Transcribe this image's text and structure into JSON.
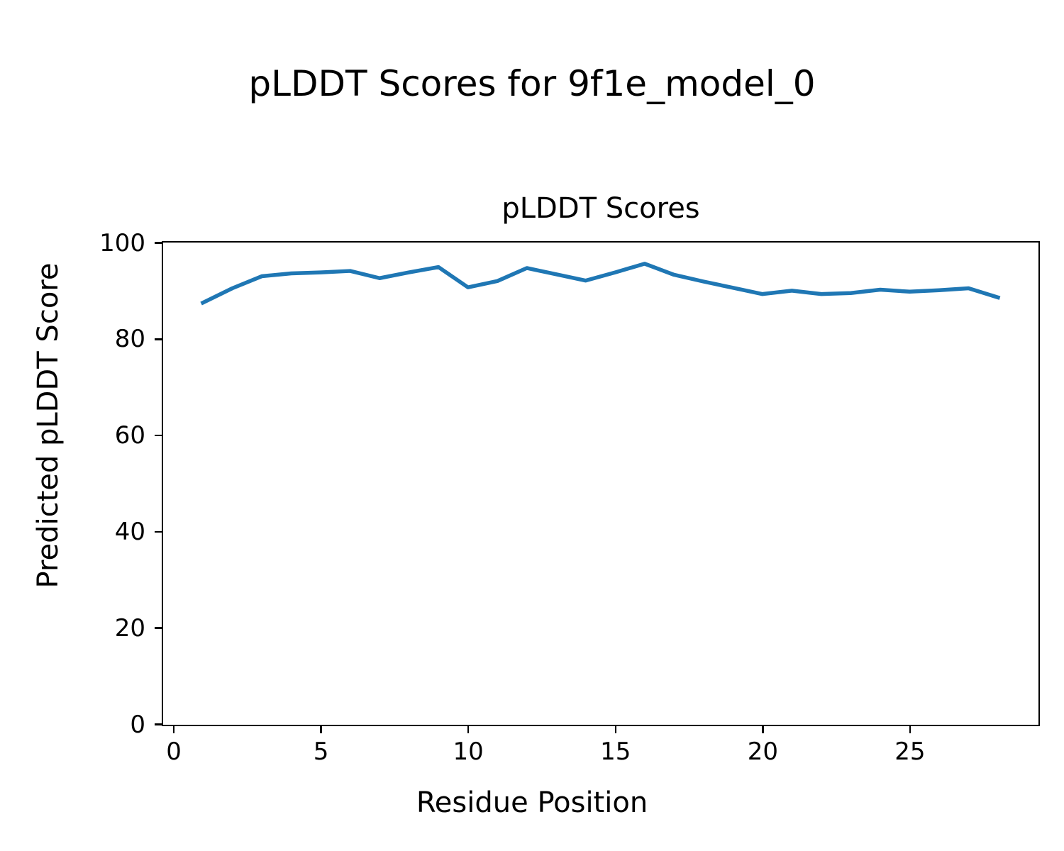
{
  "figure": {
    "suptitle": "pLDDT Scores for 9f1e_model_0",
    "background_color": "#ffffff",
    "text_color": "#000000"
  },
  "chart_data": {
    "type": "line",
    "title": "pLDDT Scores",
    "xlabel": "Residue Position",
    "ylabel": "Predicted pLDDT Score",
    "x": [
      1,
      2,
      3,
      4,
      5,
      6,
      7,
      8,
      9,
      10,
      11,
      12,
      13,
      14,
      15,
      16,
      17,
      18,
      19,
      20,
      21,
      22,
      23,
      24,
      25,
      26,
      27,
      28
    ],
    "y": [
      87.5,
      90.5,
      93.0,
      93.6,
      93.8,
      94.1,
      92.6,
      93.8,
      94.9,
      90.7,
      92.0,
      94.7,
      93.4,
      92.1,
      93.8,
      95.6,
      93.3,
      91.9,
      90.6,
      89.3,
      90.0,
      89.3,
      89.5,
      90.2,
      89.8,
      90.1,
      90.5,
      88.6
    ],
    "xlim": [
      -0.35,
      29.35
    ],
    "ylim": [
      0,
      100
    ],
    "xticks": [
      0,
      5,
      10,
      15,
      20,
      25
    ],
    "yticks": [
      0,
      20,
      40,
      60,
      80,
      100
    ],
    "line_color": "#1f77b4",
    "grid": false,
    "legend": null
  }
}
